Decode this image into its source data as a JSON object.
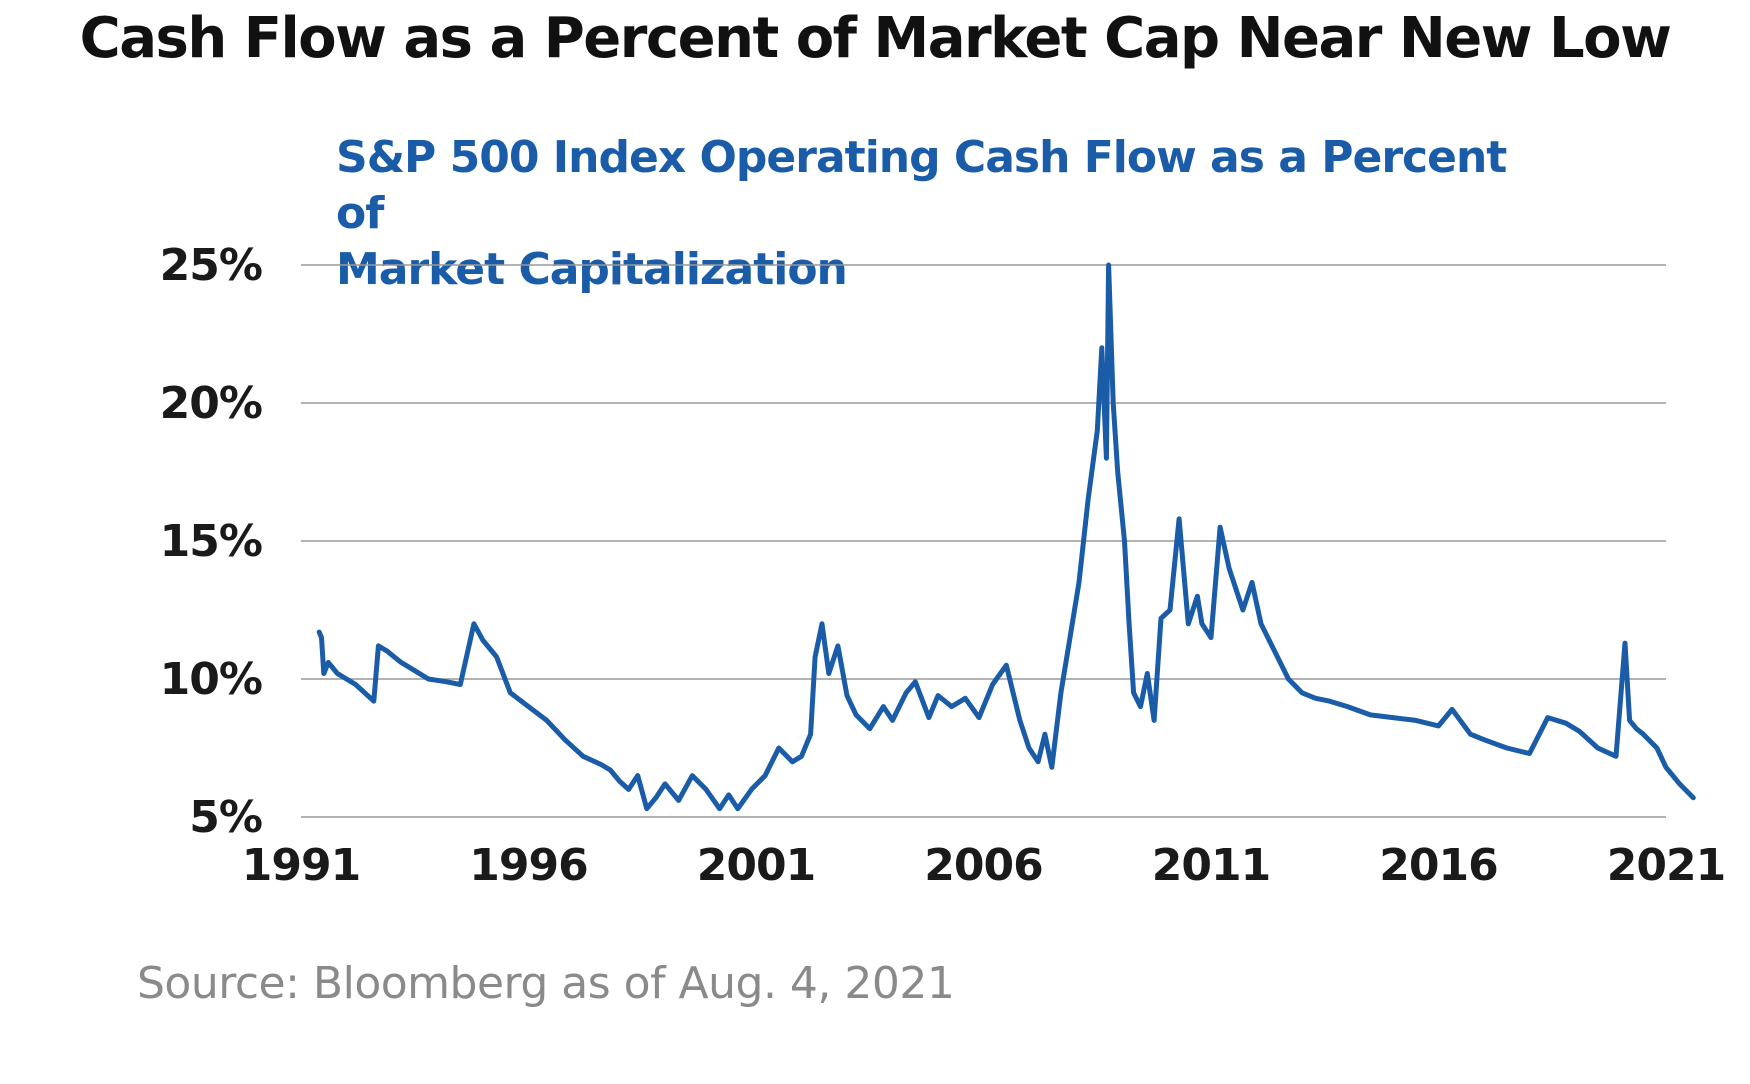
{
  "header": {
    "title": "Cash Flow as a Percent of Market Cap Near New Low"
  },
  "footer": {
    "source": "Source: Bloomberg as of Aug. 4, 2021"
  },
  "colors": {
    "series": "#1a5ca8",
    "subtitle": "#1a5ca8",
    "grid": "#999999"
  },
  "chart_data": {
    "type": "line",
    "title": "S&P 500 Index Operating Cash Flow as a Percent of Market Capitalization",
    "title_lines": [
      "S&P 500 Index Operating Cash Flow as a Percent of",
      "Market Capitalization"
    ],
    "xlabel": "",
    "ylabel": "",
    "xlim": [
      1991,
      2021
    ],
    "ylim": [
      5,
      25
    ],
    "x_ticks": [
      1991,
      1996,
      2001,
      2006,
      2011,
      2016,
      2021
    ],
    "x_tick_labels": [
      "1991",
      "1996",
      "2001",
      "2006",
      "2011",
      "2016",
      "2021"
    ],
    "y_ticks": [
      5,
      10,
      15,
      20,
      25
    ],
    "y_tick_labels": [
      "5%",
      "10%",
      "15%",
      "20%",
      "25%"
    ],
    "grid": true,
    "legend": "none",
    "series": [
      {
        "name": "S&P 500 Operating Cash Flow / Market Cap",
        "x": [
          1991.4,
          1991.45,
          1991.5,
          1991.6,
          1991.8,
          1992.0,
          1992.2,
          1992.4,
          1992.6,
          1992.7,
          1992.9,
          1993.2,
          1993.5,
          1993.8,
          1994.2,
          1994.5,
          1994.8,
          1995.0,
          1995.3,
          1995.6,
          1996.0,
          1996.4,
          1996.8,
          1997.2,
          1997.6,
          1997.8,
          1998.0,
          1998.2,
          1998.4,
          1998.6,
          1998.8,
          1999.0,
          1999.3,
          1999.6,
          1999.9,
          2000.2,
          2000.4,
          2000.6,
          2000.9,
          2001.2,
          2001.5,
          2001.8,
          2002.0,
          2002.2,
          2002.3,
          2002.45,
          2002.6,
          2002.8,
          2003.0,
          2003.2,
          2003.5,
          2003.8,
          2004.0,
          2004.3,
          2004.5,
          2004.8,
          2005.0,
          2005.3,
          2005.6,
          2005.9,
          2006.2,
          2006.5,
          2006.8,
          2007.0,
          2007.2,
          2007.35,
          2007.5,
          2007.7,
          2007.9,
          2008.1,
          2008.3,
          2008.5,
          2008.6,
          2008.7,
          2008.75,
          2008.85,
          2008.95,
          2009.1,
          2009.2,
          2009.3,
          2009.45,
          2009.6,
          2009.75,
          2009.9,
          2010.1,
          2010.3,
          2010.5,
          2010.7,
          2010.8,
          2011.0,
          2011.2,
          2011.4,
          2011.6,
          2011.7,
          2011.9,
          2012.1,
          2012.4,
          2012.7,
          2013.0,
          2013.3,
          2013.6,
          2014.0,
          2014.5,
          2015.0,
          2015.5,
          2016.0,
          2016.3,
          2016.7,
          2017.0,
          2017.5,
          2018.0,
          2018.4,
          2018.8,
          2019.1,
          2019.5,
          2019.9,
          2020.1,
          2020.2,
          2020.35,
          2020.5,
          2020.8,
          2021.0,
          2021.3,
          2021.6
        ],
        "values": [
          11.7,
          11.5,
          10.2,
          10.6,
          10.2,
          10.0,
          9.8,
          9.5,
          9.2,
          11.2,
          11.0,
          10.6,
          10.3,
          10.0,
          9.9,
          9.8,
          12.0,
          11.4,
          10.8,
          9.5,
          9.0,
          8.5,
          7.8,
          7.2,
          6.9,
          6.7,
          6.3,
          6.0,
          6.5,
          5.3,
          5.7,
          6.2,
          5.6,
          6.5,
          6.0,
          5.3,
          5.8,
          5.3,
          6.0,
          6.5,
          7.5,
          7.0,
          7.2,
          8.0,
          10.8,
          12.0,
          10.2,
          11.2,
          9.4,
          8.7,
          8.2,
          9.0,
          8.5,
          9.5,
          9.9,
          8.6,
          9.4,
          9.0,
          9.3,
          8.6,
          9.8,
          10.5,
          8.5,
          7.5,
          7.0,
          8.0,
          6.8,
          9.5,
          11.5,
          13.5,
          16.5,
          19.0,
          22.0,
          18.0,
          25.0,
          20.0,
          17.5,
          15.0,
          12.0,
          9.5,
          9.0,
          10.2,
          8.5,
          12.2,
          12.5,
          15.8,
          12.0,
          13.0,
          12.0,
          11.5,
          15.5,
          14.0,
          13.0,
          12.5,
          13.5,
          12.0,
          11.0,
          10.0,
          9.5,
          9.3,
          9.2,
          9.0,
          8.7,
          8.6,
          8.5,
          8.3,
          8.9,
          8.0,
          7.8,
          7.5,
          7.3,
          8.6,
          8.4,
          8.1,
          7.5,
          7.2,
          11.3,
          8.5,
          8.2,
          8.0,
          7.5,
          6.8,
          6.2,
          5.7
        ]
      }
    ]
  }
}
